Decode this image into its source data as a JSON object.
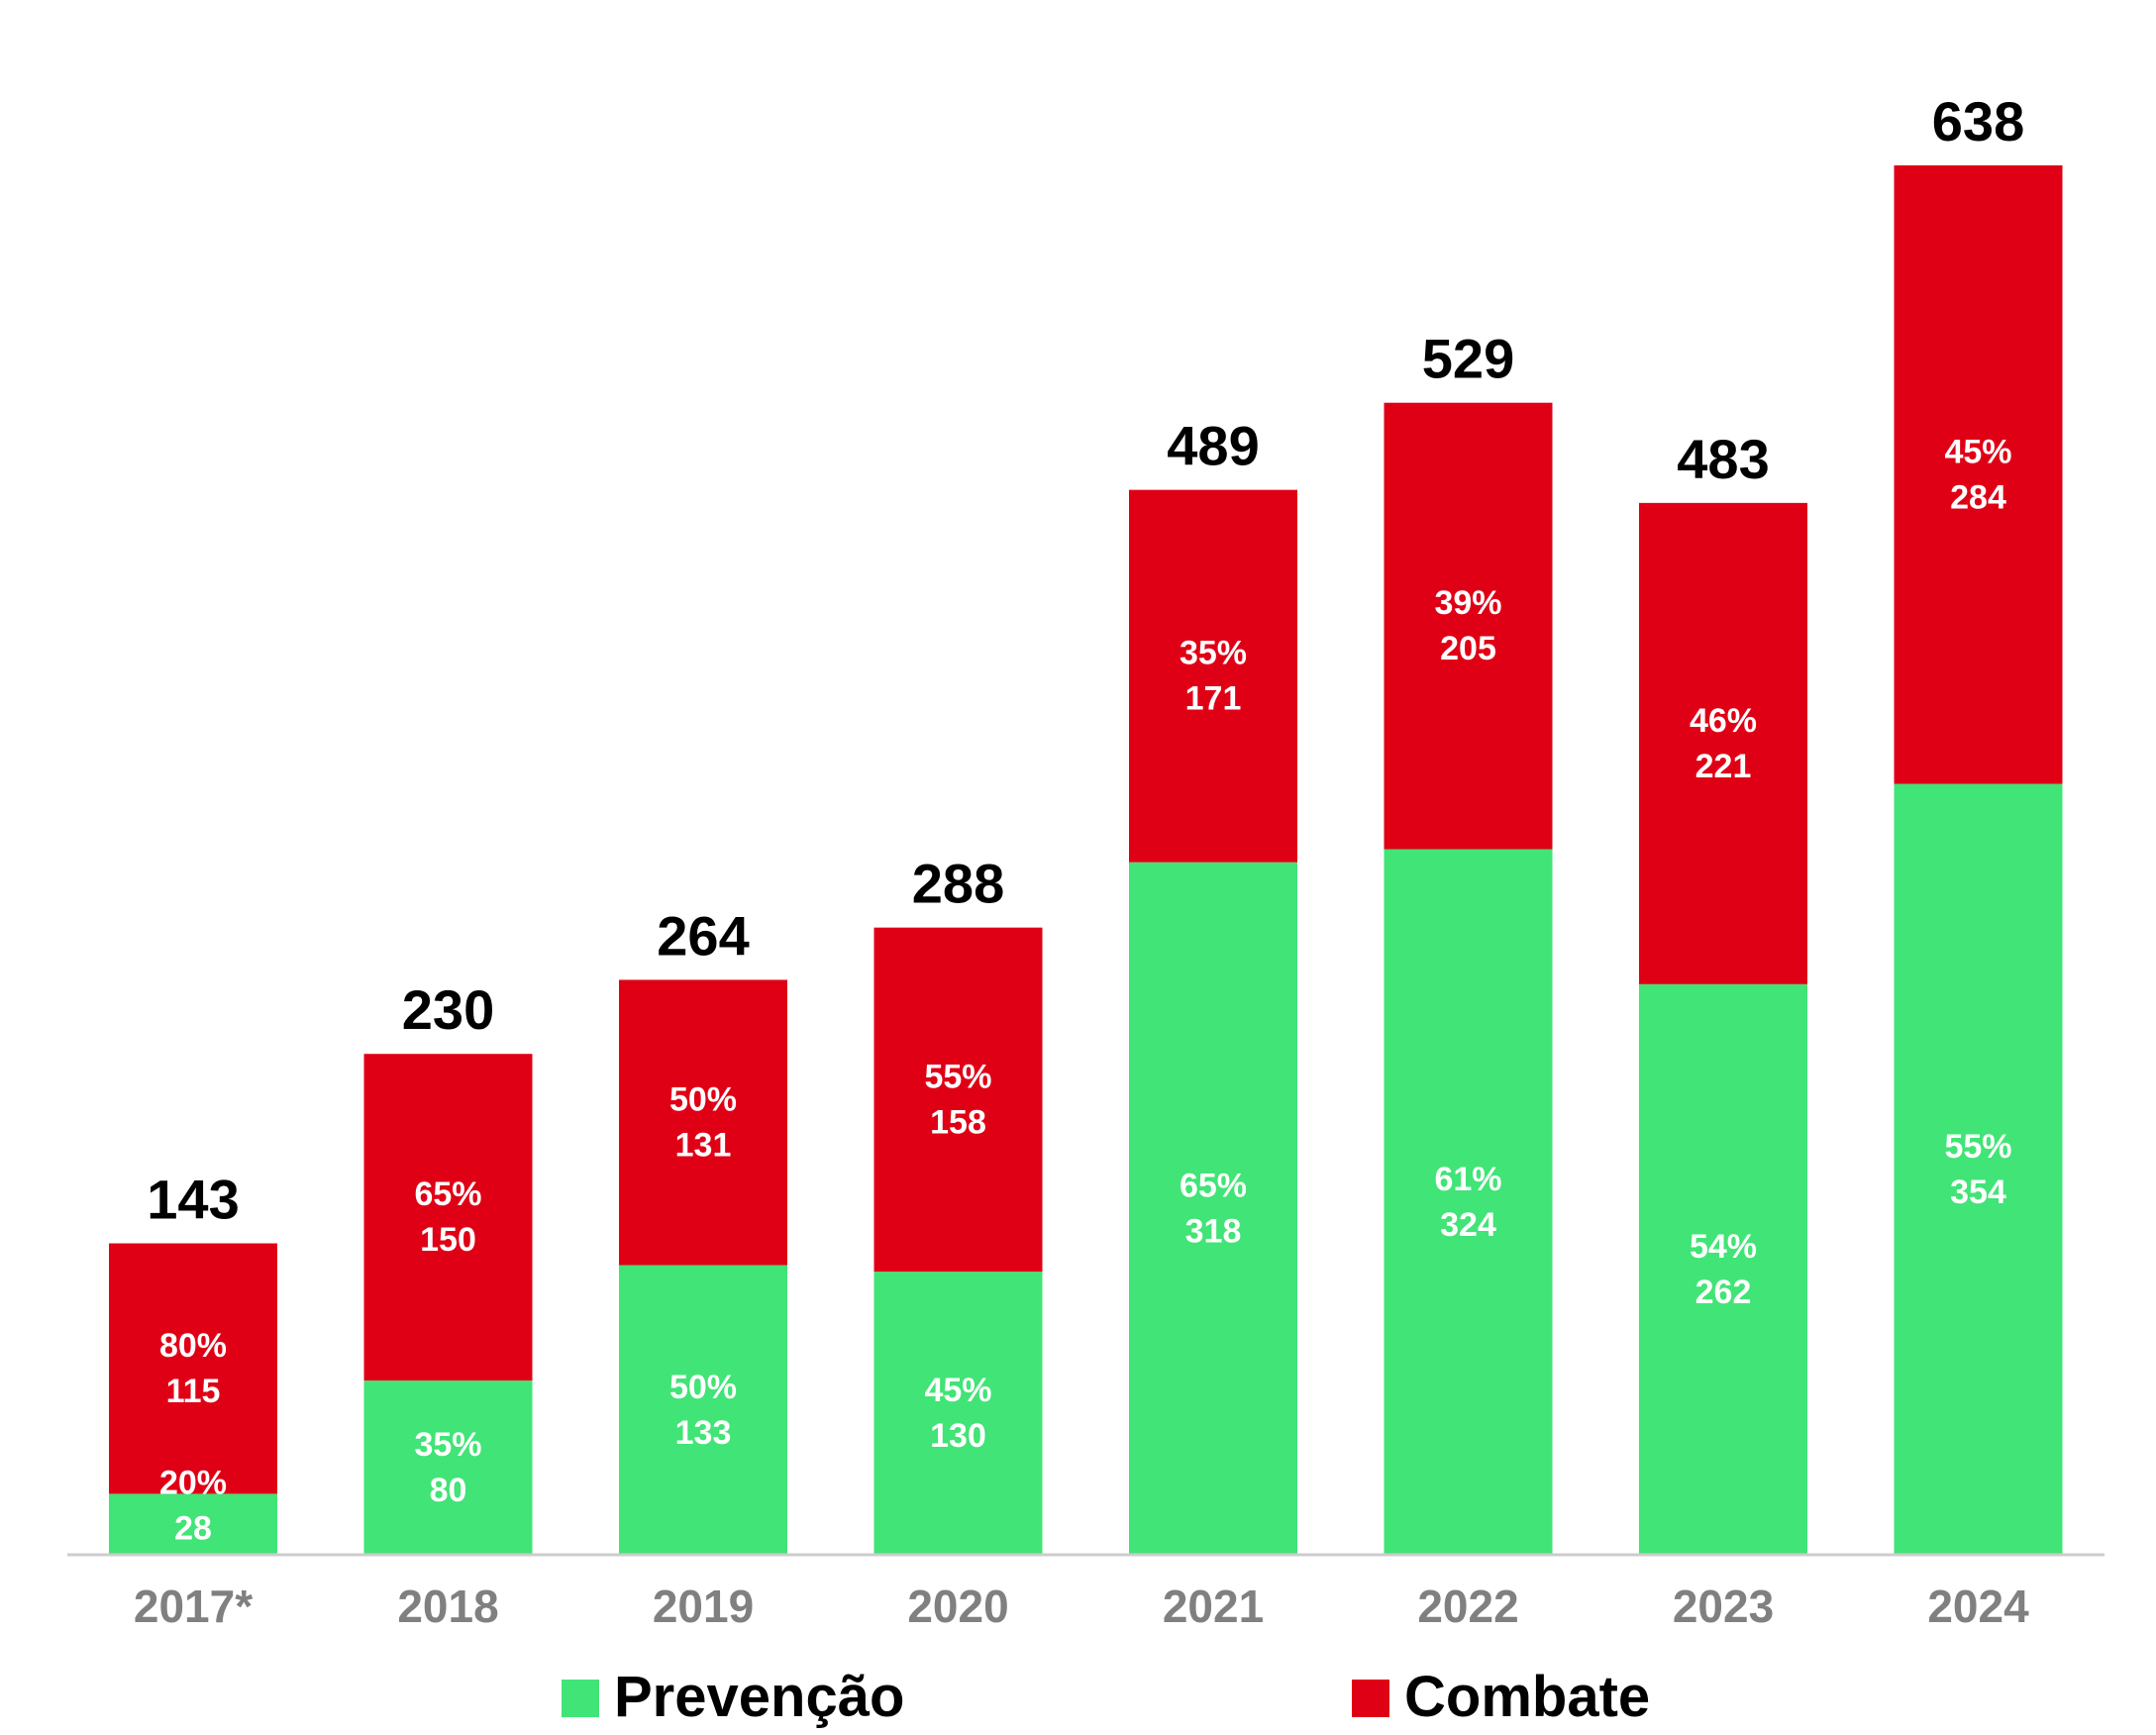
{
  "chart_data": {
    "type": "bar",
    "stacked": true,
    "categories": [
      "2017*",
      "2018",
      "2019",
      "2020",
      "2021",
      "2022",
      "2023",
      "2024"
    ],
    "totals": [
      143,
      230,
      264,
      288,
      489,
      529,
      483,
      638
    ],
    "series": [
      {
        "name": "Prevenção",
        "color": "#41e476",
        "values": [
          28,
          80,
          133,
          130,
          318,
          324,
          262,
          354
        ],
        "percent_labels": [
          "20%",
          "35%",
          "50%",
          "45%",
          "65%",
          "61%",
          "54%",
          "55%"
        ]
      },
      {
        "name": "Combate",
        "color": "#e00016",
        "values": [
          115,
          150,
          131,
          158,
          171,
          205,
          221,
          284
        ],
        "percent_labels": [
          "80%",
          "65%",
          "50%",
          "55%",
          "35%",
          "39%",
          "46%",
          "45%"
        ]
      }
    ],
    "ylim": [
      0,
      700
    ],
    "grid": false,
    "legend": "bottom",
    "colors": {
      "axis": "#cccccc",
      "tick_text": "#808080",
      "total_text": "#000000",
      "inner_text": "#ffffff"
    }
  }
}
